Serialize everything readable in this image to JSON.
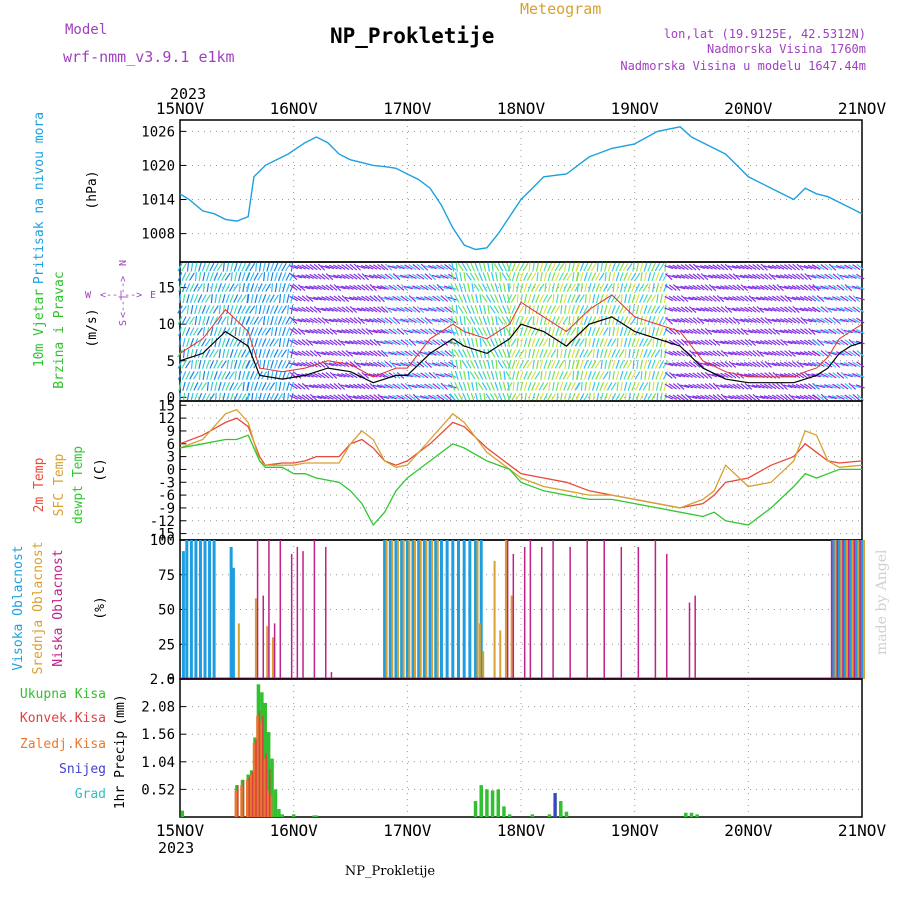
{
  "header": {
    "model_label": "Model",
    "model_name": "wrf-nmm_v3.9.1  e1km",
    "title": "NP_Prokletije",
    "subtitle": "Meteogram",
    "lonlat": "lon,lat (19.9125E, 42.5312N)",
    "elevation": "Nadmorska Visina 1760m",
    "model_elevation": "Nadmorska Visina u modelu 1647.44m"
  },
  "footer": {
    "station": "NP_Prokletije",
    "credit": "made by Angel"
  },
  "year_label": "2023",
  "dates": [
    "15NOV",
    "16NOV",
    "17NOV",
    "18NOV",
    "19NOV",
    "20NOV",
    "21NOV"
  ],
  "colors": {
    "pressure": "#1ea0e0",
    "wind_speed": "#000000",
    "gust": "#e03030",
    "temp2m": "#e84a3a",
    "sfc_temp": "#d8a030",
    "dewpoint": "#30c830",
    "high_cloud": "#1e9ee0",
    "mid_cloud": "#d8a030",
    "low_cloud": "#c0208a",
    "total_precip": "#30c030",
    "conv_precip": "#e04040",
    "frozen_precip": "#e87830",
    "snow": "#4040d0",
    "graupel": "#30c0c0",
    "purple_text": "#a040c0"
  },
  "wind_legend": {
    "n": "N",
    "w": "W",
    "e": "E",
    "s": "S",
    "arrow_row1": "<--|-->",
    "arrow_row2": "<--|-->"
  },
  "chart_data": [
    {
      "type": "line",
      "name": "pressure",
      "ylabel_main": "Pritisak na nivou mora",
      "ylabel_unit": "(hPa)",
      "ylim": [
        1003,
        1028
      ],
      "yticks": [
        1008,
        1014,
        1020,
        1026
      ],
      "x_days": [
        0,
        0.08,
        0.2,
        0.3,
        0.4,
        0.5,
        0.6,
        0.65,
        0.7,
        0.75,
        0.85,
        0.95,
        1.1,
        1.2,
        1.3,
        1.4,
        1.5,
        1.6,
        1.7,
        1.8,
        1.9,
        2.0,
        2.1,
        2.2,
        2.3,
        2.4,
        2.5,
        2.6,
        2.7,
        2.8,
        2.9,
        3.0,
        3.1,
        3.2,
        3.4,
        3.5,
        3.6,
        3.8,
        4.0,
        4.2,
        4.4,
        4.5,
        4.7,
        4.8,
        4.9,
        5.0,
        5.2,
        5.4,
        5.5,
        5.6,
        5.7,
        5.8,
        5.9,
        6.0
      ],
      "values": [
        1015,
        1014,
        1012,
        1011.5,
        1010.5,
        1010.2,
        1011,
        1018,
        1019,
        1020,
        1021,
        1022,
        1024,
        1025,
        1024,
        1022,
        1021,
        1020.5,
        1020,
        1019.8,
        1019.5,
        1018.5,
        1017.5,
        1016,
        1013,
        1009,
        1006,
        1005.2,
        1005.5,
        1008,
        1011,
        1014,
        1016,
        1018,
        1018.5,
        1020,
        1021.5,
        1023,
        1023.8,
        1026,
        1026.8,
        1025,
        1023,
        1022,
        1020,
        1018,
        1016,
        1014,
        1016,
        1015,
        1014.5,
        1013.5,
        1012.5,
        1011.5
      ]
    },
    {
      "type": "line",
      "name": "wind",
      "ylabel_main": "10m Vjetar",
      "ylabel_main2": "Brzina i Pravac",
      "ylabel_unit": "(m/s)",
      "ylim": [
        -0.5,
        18.5
      ],
      "yticks": [
        0,
        5,
        10,
        15
      ],
      "x_days": [
        0,
        0.2,
        0.4,
        0.6,
        0.7,
        0.9,
        1.1,
        1.3,
        1.5,
        1.7,
        1.9,
        2.0,
        2.2,
        2.4,
        2.5,
        2.7,
        2.9,
        3.0,
        3.2,
        3.4,
        3.6,
        3.8,
        4.0,
        4.2,
        4.4,
        4.6,
        4.8,
        5.0,
        5.2,
        5.4,
        5.5,
        5.6,
        5.7,
        5.8,
        5.9,
        6.0
      ],
      "values": [
        5,
        6,
        9,
        7,
        3,
        2.5,
        3,
        4,
        3.5,
        2,
        3,
        3,
        6,
        8,
        7,
        6,
        8,
        10,
        9,
        7,
        10,
        11,
        9,
        8,
        7,
        4,
        2.5,
        2,
        2,
        2,
        2.5,
        3,
        4,
        6,
        7,
        7.5
      ],
      "gust_values": [
        6,
        8,
        12,
        9,
        4,
        3.5,
        4,
        5,
        4.5,
        2.8,
        4,
        4,
        8,
        10,
        9,
        8,
        10,
        13,
        11,
        9,
        12,
        14,
        11,
        10,
        9,
        5,
        3.5,
        2.8,
        2.8,
        2.8,
        3.5,
        4,
        5.5,
        8,
        9,
        10
      ],
      "ranges": [
        {
          "start": 0.0,
          "end": 0.6,
          "dir": 20,
          "colors": [
            "#30c0ff",
            "#40e0a0",
            "#2080e0"
          ]
        },
        {
          "start": 0.6,
          "end": 1.0,
          "dir": 20,
          "colors": [
            "#30c0ff",
            "#2080e0"
          ]
        },
        {
          "start": 1.0,
          "end": 1.8,
          "dir": 300,
          "colors": [
            "#a020e0",
            "#6040f0"
          ]
        },
        {
          "start": 1.8,
          "end": 2.4,
          "dir": 300,
          "colors": [
            "#a020e0",
            "#30c0ff"
          ]
        },
        {
          "start": 2.4,
          "end": 2.9,
          "dir": 340,
          "colors": [
            "#30c0ff",
            "#40e0a0",
            "#80e040"
          ]
        },
        {
          "start": 2.9,
          "end": 3.5,
          "dir": 200,
          "colors": [
            "#40e0c0",
            "#80e040",
            "#e0e040"
          ]
        },
        {
          "start": 3.5,
          "end": 4.3,
          "dir": 200,
          "colors": [
            "#80e040",
            "#e0e040",
            "#30c0ff",
            "#40e0c0"
          ]
        },
        {
          "start": 4.3,
          "end": 5.0,
          "dir": 300,
          "colors": [
            "#a020e0",
            "#6040f0"
          ]
        },
        {
          "start": 5.0,
          "end": 5.6,
          "dir": 300,
          "colors": [
            "#a020e0",
            "#6040f0"
          ]
        },
        {
          "start": 5.6,
          "end": 6.0,
          "dir": 300,
          "colors": [
            "#a020e0",
            "#30c0ff"
          ]
        }
      ]
    },
    {
      "type": "line",
      "name": "temperature",
      "ylabel_main": "2m Temp",
      "ylabel_main2": "SFC Temp",
      "ylabel_main3": "dewpt Temp",
      "ylabel_unit": "(C)",
      "ylim": [
        -16.5,
        16
      ],
      "yticks": [
        -15,
        -12,
        -9,
        -6,
        -3,
        0,
        3,
        6,
        9,
        12,
        15
      ],
      "x_days": [
        0,
        0.2,
        0.4,
        0.5,
        0.6,
        0.7,
        0.75,
        0.9,
        1.0,
        1.1,
        1.2,
        1.4,
        1.5,
        1.6,
        1.7,
        1.8,
        1.9,
        2.0,
        2.2,
        2.4,
        2.5,
        2.7,
        2.9,
        3.0,
        3.2,
        3.4,
        3.6,
        3.8,
        4.0,
        4.2,
        4.4,
        4.6,
        4.7,
        4.8,
        5.0,
        5.2,
        5.4,
        5.5,
        5.6,
        5.7,
        5.8,
        6.0
      ],
      "series": [
        {
          "name": "2m Temp",
          "values": [
            6,
            8,
            11,
            12,
            10,
            3,
            1,
            1.5,
            1.5,
            2,
            3,
            3,
            6,
            7,
            5,
            2,
            1,
            2,
            6,
            11,
            10,
            5,
            1,
            -1,
            -2,
            -3,
            -5,
            -6,
            -7,
            -8,
            -9,
            -8,
            -6,
            -3,
            -2,
            1,
            3,
            6,
            4,
            2,
            1.5,
            2
          ]
        },
        {
          "name": "SFC Temp",
          "values": [
            5,
            7,
            13,
            14,
            11,
            2,
            1,
            1,
            1,
            1.5,
            1.5,
            1.5,
            6,
            9,
            7,
            2,
            0.5,
            1,
            7,
            13,
            11,
            4,
            0,
            -2,
            -4,
            -5,
            -6,
            -6,
            -7,
            -8,
            -9,
            -7,
            -5,
            1,
            -4,
            -3,
            2,
            9,
            8,
            2,
            0.5,
            1
          ]
        },
        {
          "name": "dewpt Temp",
          "values": [
            5,
            6,
            7,
            7,
            8,
            2,
            0.5,
            0.5,
            -1,
            -1,
            -2,
            -3,
            -5,
            -8,
            -13,
            -10,
            -5,
            -2,
            2,
            6,
            5,
            2,
            0,
            -3,
            -5,
            -6,
            -7,
            -7,
            -8,
            -9,
            -10,
            -11,
            -10,
            -12,
            -13,
            -9,
            -4,
            -1,
            -2,
            -1,
            0,
            0
          ]
        }
      ]
    },
    {
      "type": "bar",
      "name": "cloud_cover",
      "ylabel_main": "Visoka Oblacnost",
      "ylabel_main2": "Srednja Oblacnost",
      "ylabel_main3": "Niska Oblacnost",
      "ylabel_unit": "(%)",
      "ylim": [
        0,
        100
      ],
      "yticks": [
        0,
        25,
        50,
        75,
        100
      ],
      "high": {
        "x_days": [
          0.03,
          0.06,
          0.1,
          0.14,
          0.18,
          0.22,
          0.26,
          0.3,
          0.45,
          0.47,
          1.8,
          1.85,
          1.9,
          1.95,
          2.0,
          2.05,
          2.1,
          2.15,
          2.2,
          2.25,
          2.3,
          2.35,
          2.4,
          2.45,
          2.5,
          2.55,
          2.6,
          2.65,
          5.75,
          5.8,
          5.85,
          5.9,
          5.95,
          6.0
        ],
        "values": [
          92,
          100,
          100,
          100,
          100,
          100,
          100,
          100,
          95,
          80,
          100,
          100,
          100,
          100,
          100,
          100,
          100,
          100,
          100,
          100,
          100,
          100,
          100,
          100,
          100,
          100,
          100,
          100,
          100,
          100,
          100,
          100,
          100,
          100
        ]
      },
      "mid": {
        "x_days": [
          0.5,
          0.65,
          0.75,
          0.8,
          1.8,
          1.85,
          1.9,
          1.95,
          2.0,
          2.05,
          2.1,
          2.15,
          2.2,
          2.25,
          2.6,
          2.62,
          2.65,
          2.75,
          2.8,
          2.85,
          2.9,
          5.75,
          5.8,
          5.85,
          5.9,
          5.95,
          6.0
        ],
        "values": [
          40,
          58,
          38,
          30,
          100,
          100,
          100,
          100,
          100,
          100,
          100,
          100,
          100,
          100,
          100,
          40,
          20,
          85,
          35,
          100,
          60,
          100,
          100,
          100,
          100,
          100,
          100
        ]
      },
      "low": {
        "x_days": [
          0.7,
          0.75,
          0.8,
          0.85,
          0.9,
          1.0,
          1.05,
          1.1,
          1.2,
          1.3,
          1.35,
          2.9,
          2.95,
          3.05,
          3.1,
          3.2,
          3.3,
          3.45,
          3.6,
          3.75,
          3.9,
          4.05,
          4.2,
          4.3,
          4.5,
          4.55,
          5.75,
          5.8,
          5.85,
          5.9,
          5.95,
          6.0
        ],
        "values": [
          100,
          60,
          100,
          40,
          100,
          90,
          95,
          92,
          100,
          95,
          5,
          100,
          90,
          95,
          100,
          95,
          100,
          95,
          100,
          100,
          95,
          95,
          100,
          90,
          55,
          60,
          100,
          100,
          100,
          100,
          100,
          100
        ]
      }
    },
    {
      "type": "bar",
      "name": "precipitation",
      "ylabel_main": "1hr Precip",
      "ylabel_unit": "(mm)",
      "ylim": [
        0,
        2.6
      ],
      "yticks": [
        0.52,
        1.04,
        1.56,
        2.08,
        2.6
      ],
      "legend": [
        "Ukupna Kisa",
        "Konvek.Kisa",
        "Zaledj.Kisa",
        "Snijeg",
        "Grad"
      ],
      "total": {
        "x_days": [
          0.02,
          0.5,
          0.55,
          0.6,
          0.63,
          0.66,
          0.69,
          0.72,
          0.75,
          0.78,
          0.81,
          0.84,
          0.87,
          0.9,
          1.0,
          1.2,
          1.18,
          2.6,
          2.65,
          2.7,
          2.75,
          2.8,
          2.85,
          2.9,
          3.1,
          3.25,
          3.3,
          3.35,
          3.4,
          4.45,
          4.5,
          4.55
        ],
        "values": [
          0.12,
          0.6,
          0.7,
          0.8,
          0.88,
          1.5,
          2.5,
          2.35,
          2.15,
          1.6,
          1.1,
          0.52,
          0.15,
          0.05,
          0.05,
          0.03,
          0.03,
          0.3,
          0.6,
          0.52,
          0.5,
          0.52,
          0.2,
          0.05,
          0.05,
          0.05,
          0.45,
          0.3,
          0.1,
          0.08,
          0.08,
          0.05
        ]
      },
      "conv": {
        "x_days": [
          0.5,
          0.55,
          0.6,
          0.63,
          0.66,
          0.69,
          0.72,
          0.75,
          0.78
        ],
        "values": [
          0.6,
          0.7,
          0.75,
          0.85,
          1.45,
          2.0,
          1.9,
          1.2,
          0.9
        ]
      },
      "frozen": {
        "x_days": [
          0.5,
          0.55,
          0.6,
          0.63,
          0.66,
          0.69,
          0.72,
          0.75,
          0.78,
          0.81
        ],
        "values": [
          0.5,
          0.6,
          0.7,
          0.8,
          1.4,
          1.9,
          1.8,
          1.1,
          0.5,
          0.4
        ]
      },
      "snow": {
        "x_days": [
          3.3
        ],
        "values": [
          0.45
        ]
      },
      "grad": {
        "x_days": [],
        "values": []
      }
    }
  ]
}
